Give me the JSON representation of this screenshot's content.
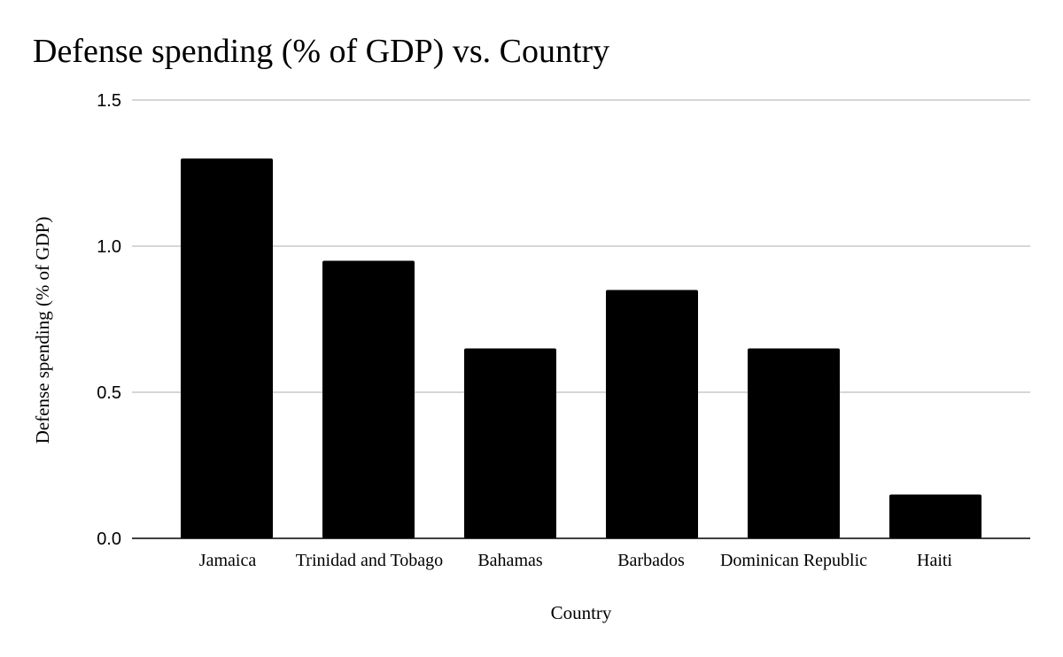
{
  "chart_data": {
    "type": "bar",
    "title": "Defense spending (% of GDP) vs. Country",
    "xlabel": "Country",
    "ylabel": "Defense spending (% of GDP)",
    "categories": [
      "Jamaica",
      "Trinidad and Tobago",
      "Bahamas",
      "Barbados",
      "Dominican Republic",
      "Haiti"
    ],
    "series": [
      {
        "values": [
          1.3,
          0.95,
          0.65,
          0.85,
          0.65,
          0.15
        ],
        "color": "#000000"
      }
    ],
    "ylim": [
      0,
      1.5
    ],
    "yticks": [
      "0.0",
      "0.5",
      "1.0",
      "1.5"
    ],
    "grid": true,
    "legend": "none"
  }
}
